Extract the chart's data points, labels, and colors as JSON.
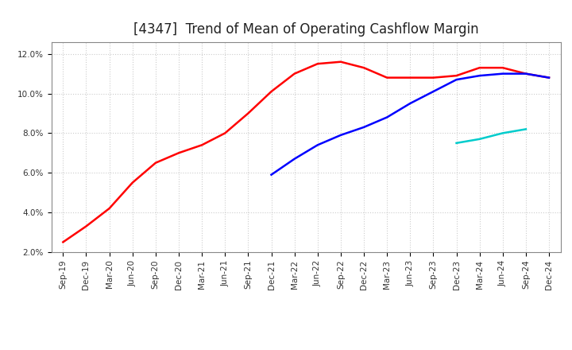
{
  "title": "[4347]  Trend of Mean of Operating Cashflow Margin",
  "ylim": [
    0.02,
    0.126
  ],
  "yticks": [
    0.02,
    0.04,
    0.06,
    0.08,
    0.1,
    0.12
  ],
  "ytick_labels": [
    "2.0%",
    "4.0%",
    "6.0%",
    "8.0%",
    "10.0%",
    "12.0%"
  ],
  "xtick_labels": [
    "Sep-19",
    "Dec-19",
    "Mar-20",
    "Jun-20",
    "Sep-20",
    "Dec-20",
    "Mar-21",
    "Jun-21",
    "Sep-21",
    "Dec-21",
    "Mar-22",
    "Jun-22",
    "Sep-22",
    "Dec-22",
    "Mar-23",
    "Jun-23",
    "Sep-23",
    "Dec-23",
    "Mar-24",
    "Jun-24",
    "Sep-24",
    "Dec-24"
  ],
  "series_3y": {
    "color": "#FF0000",
    "x": [
      0,
      1,
      2,
      3,
      4,
      5,
      6,
      7,
      8,
      9,
      10,
      11,
      12,
      13,
      14,
      15,
      16,
      17,
      18,
      19,
      20,
      21
    ],
    "y": [
      0.025,
      0.033,
      0.042,
      0.055,
      0.065,
      0.07,
      0.074,
      0.08,
      0.09,
      0.101,
      0.11,
      0.115,
      0.116,
      0.113,
      0.108,
      0.108,
      0.108,
      0.109,
      0.113,
      0.113,
      0.11,
      0.108
    ]
  },
  "series_5y": {
    "color": "#0000FF",
    "x": [
      9,
      10,
      11,
      12,
      13,
      14,
      15,
      16,
      17,
      18,
      19,
      20,
      21
    ],
    "y": [
      0.059,
      0.067,
      0.074,
      0.079,
      0.083,
      0.088,
      0.095,
      0.101,
      0.107,
      0.109,
      0.11,
      0.11,
      0.108
    ]
  },
  "series_7y": {
    "color": "#00CCCC",
    "x": [
      17,
      18,
      19,
      20
    ],
    "y": [
      0.075,
      0.077,
      0.08,
      0.082
    ]
  },
  "series_10y": {
    "color": "#008000",
    "x": [],
    "y": []
  },
  "background_color": "#FFFFFF",
  "grid_color": "#CCCCCC",
  "title_fontsize": 12,
  "tick_fontsize": 7.5,
  "legend_fontsize": 8.5
}
